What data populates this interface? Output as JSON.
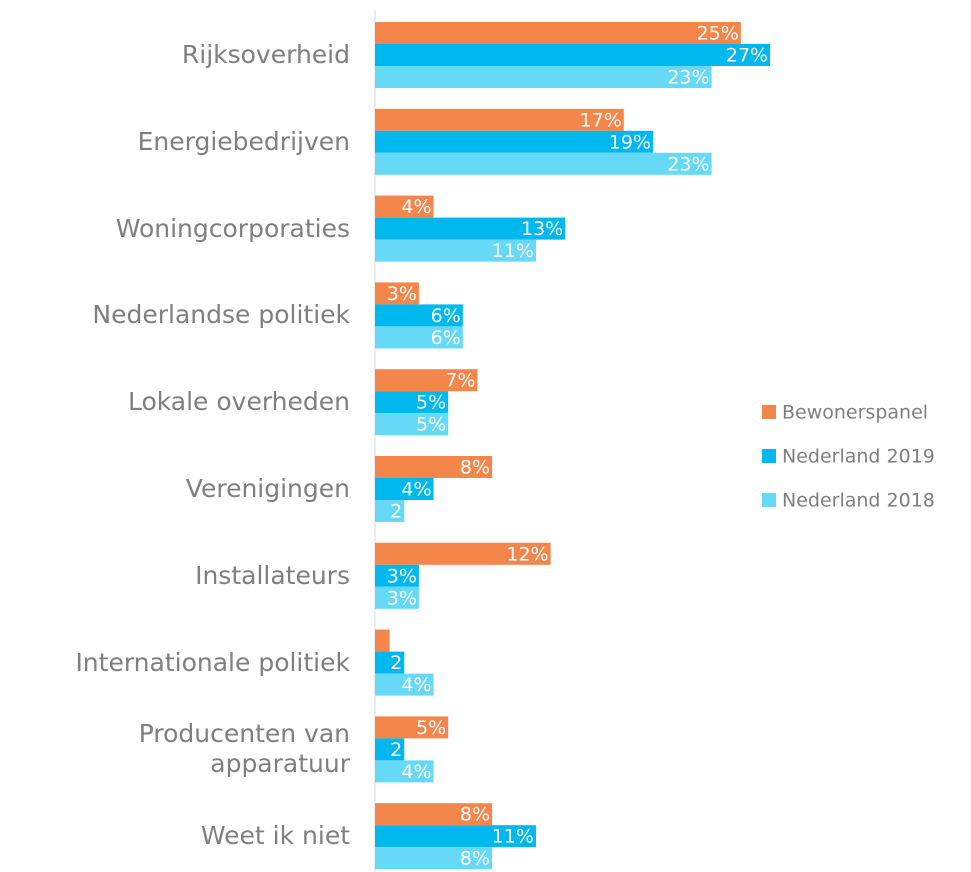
{
  "chart_data": {
    "type": "bar",
    "orientation": "horizontal",
    "categories": [
      "Rijksoverheid",
      "Energiebedrijven",
      "Woningcorporaties",
      "Nederlandse politiek",
      "Lokale overheden",
      "Verenigingen",
      "Installateurs",
      "Internationale politiek",
      "Producenten van\napparatuur",
      "Weet ik niet"
    ],
    "series": [
      {
        "name": "Bewonerspanel",
        "color": "#f4854b",
        "values": [
          25,
          17,
          4,
          3,
          7,
          8,
          12,
          1,
          5,
          8
        ],
        "value_labels": [
          "25%",
          "17%",
          "4%",
          "3%",
          "7%",
          "8%",
          "12%",
          null,
          "5%",
          "8%"
        ]
      },
      {
        "name": "Nederland 2019",
        "color": "#00b8ee",
        "values": [
          27,
          19,
          13,
          6,
          5,
          4,
          3,
          2,
          2,
          11
        ],
        "value_labels": [
          "27%",
          "19%",
          "13%",
          "6%",
          "5%",
          "4%",
          "3%",
          "2",
          "2",
          "11%"
        ]
      },
      {
        "name": "Nederland 2018",
        "color": "#66d9f7",
        "values": [
          23,
          23,
          11,
          6,
          5,
          2,
          3,
          4,
          4,
          8
        ],
        "value_labels": [
          "23%",
          "23%",
          "11%",
          "6%",
          "5%",
          "2",
          "3%",
          "4%",
          "4%",
          "8%"
        ]
      }
    ],
    "xlim": [
      0,
      30
    ],
    "legend": "right"
  }
}
